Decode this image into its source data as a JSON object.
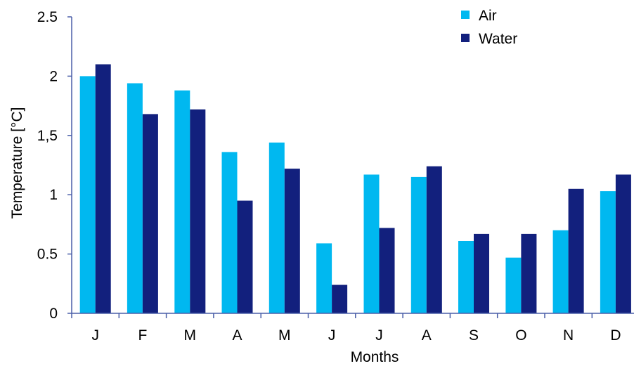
{
  "chart_data": {
    "type": "bar",
    "categories": [
      "J",
      "F",
      "M",
      "A",
      "M",
      "J",
      "J",
      "A",
      "S",
      "O",
      "N",
      "D"
    ],
    "series": [
      {
        "name": "Air",
        "color": "#00b8f0",
        "values": [
          2.0,
          1.94,
          1.88,
          1.36,
          1.44,
          0.59,
          1.17,
          1.15,
          0.61,
          0.47,
          0.7,
          1.03
        ]
      },
      {
        "name": "Water",
        "color": "#12207d",
        "values": [
          2.1,
          1.68,
          1.72,
          0.95,
          1.22,
          0.24,
          0.72,
          1.24,
          0.67,
          0.67,
          1.05,
          1.17
        ]
      }
    ],
    "title": "",
    "xlabel": "Months",
    "ylabel": "Temperature [°C]",
    "ylim": [
      0,
      2.5
    ],
    "yticks": [
      {
        "value": 0,
        "label": "0"
      },
      {
        "value": 0.5,
        "label": "0.5"
      },
      {
        "value": 1,
        "label": "1"
      },
      {
        "value": 1.5,
        "label": "1,5"
      },
      {
        "value": 2,
        "label": "2"
      },
      {
        "value": 2.5,
        "label": "2.5"
      }
    ],
    "grid": false,
    "legend_position": "top-right",
    "axis_color": "#4a5fa8"
  }
}
